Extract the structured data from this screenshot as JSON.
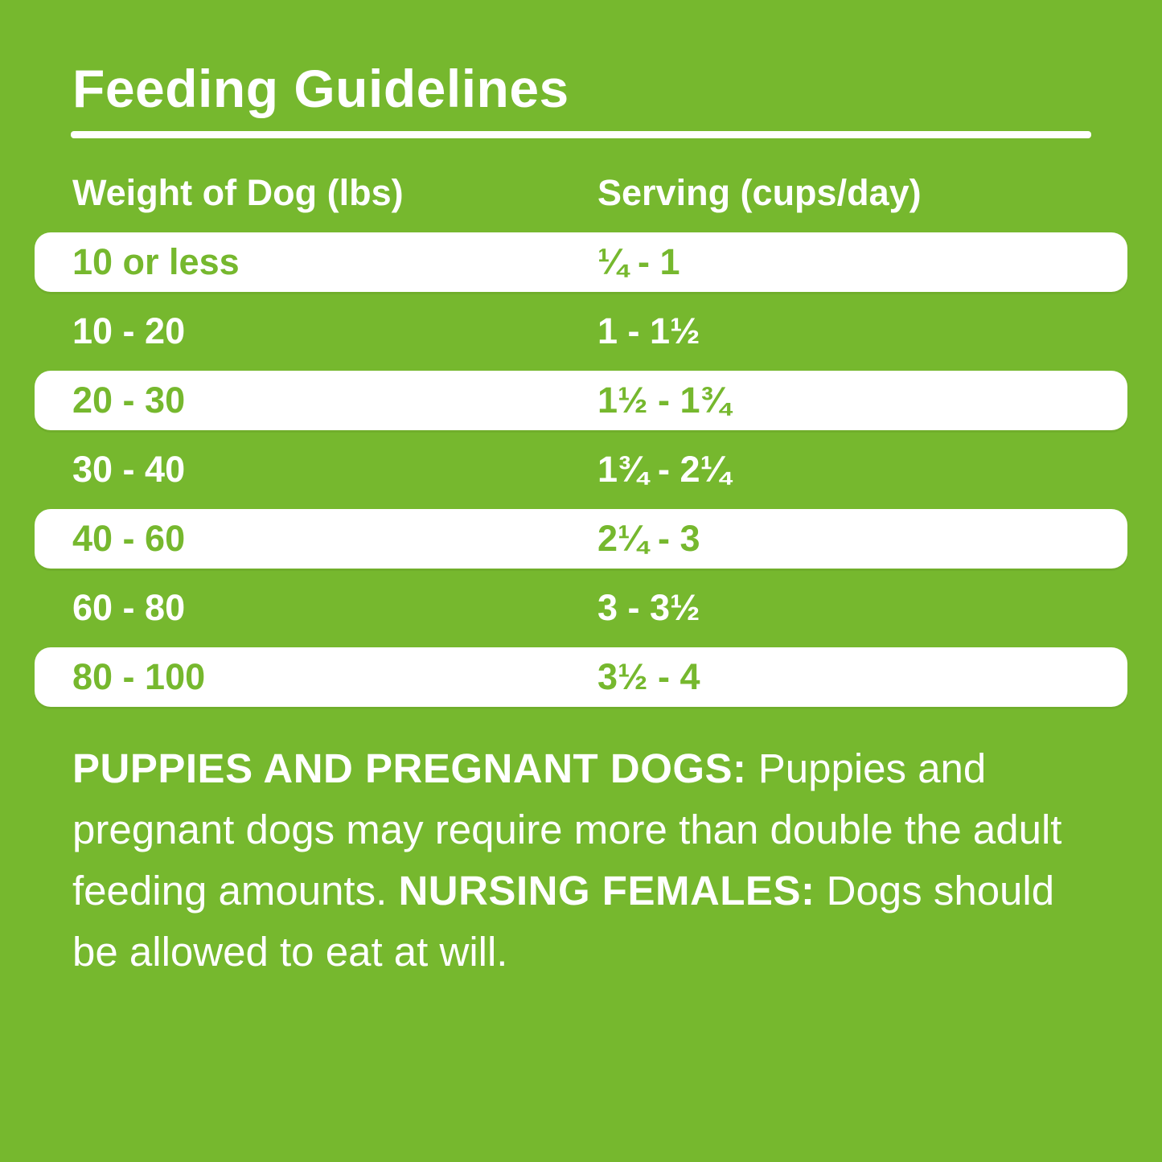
{
  "page": {
    "background_color": "#76B82E",
    "row_highlight_color": "#FFFFFF",
    "text_on_green": "#FFFFFF",
    "text_on_white": "#76B82E"
  },
  "title": "Feeding Guidelines",
  "table": {
    "columns": [
      "Weight of Dog (lbs)",
      "Serving (cups/day)"
    ],
    "rows": [
      {
        "weight": "10 or less",
        "serving": "¼ - 1",
        "highlight": true
      },
      {
        "weight": "10 - 20",
        "serving": "1 - 1½",
        "highlight": false
      },
      {
        "weight": "20 - 30",
        "serving": "1½ - 1¾",
        "highlight": true
      },
      {
        "weight": "30 - 40",
        "serving": "1¾ - 2¼",
        "highlight": false
      },
      {
        "weight": "40 - 60",
        "serving": "2¼ - 3",
        "highlight": true
      },
      {
        "weight": "60 - 80",
        "serving": "3 - 3½",
        "highlight": false
      },
      {
        "weight": "80 - 100",
        "serving": "3½ - 4",
        "highlight": true
      }
    ]
  },
  "footnote": {
    "bold1": "PUPPIES AND PREGNANT DOGS:",
    "text1": " Puppies and pregnant dogs may require more than double the adult feeding amounts. ",
    "bold2": "NURSING FEMALES:",
    "text2": " Dogs should be allowed to eat at will."
  }
}
